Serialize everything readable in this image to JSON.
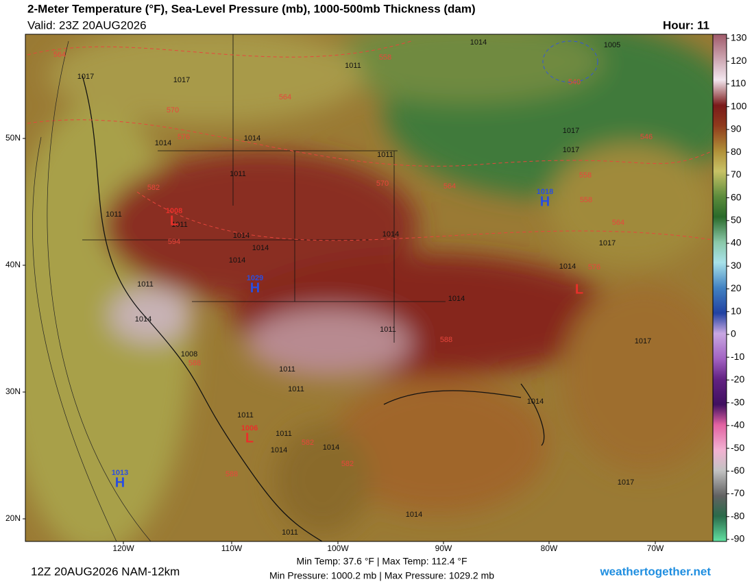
{
  "header": {
    "title": "2-Meter Temperature (°F), Sea-Level Pressure (mb), 1000-500mb Thickness (dam)",
    "valid": "Valid: 23Z 20AUG2026",
    "hour": "Hour: 11"
  },
  "colorbar": {
    "ticks": [
      130,
      120,
      110,
      100,
      90,
      80,
      70,
      60,
      50,
      40,
      30,
      20,
      10,
      0,
      -10,
      -20,
      -30,
      -40,
      -50,
      -60,
      -70,
      -80,
      -90
    ]
  },
  "latitudes": [
    "50N",
    "40N",
    "30N",
    "20N"
  ],
  "longitudes": [
    "120W",
    "110W",
    "100W",
    "90W",
    "80W",
    "70W"
  ],
  "isobars": [
    "1017",
    "1017",
    "1014",
    "1011",
    "1014",
    "1014",
    "1011",
    "1011",
    "1017",
    "1017",
    "1011",
    "1014",
    "1014",
    "1014",
    "1014",
    "1011",
    "1014",
    "1014",
    "1011",
    "1017",
    "1014",
    "1017",
    "1008",
    "1011",
    "1011",
    "1011",
    "1011",
    "1014",
    "1014",
    "1014",
    "1014",
    "1017",
    "1011",
    "1005",
    "1011"
  ],
  "thickness": [
    "564",
    "558",
    "564",
    "570",
    "576",
    "570",
    "564",
    "582",
    "558",
    "558",
    "564",
    "546",
    "576",
    "588",
    "588",
    "582",
    "582",
    "588",
    "594",
    "540"
  ],
  "centers": [
    {
      "letter": "H",
      "pressure": "1018"
    },
    {
      "letter": "H",
      "pressure": "1029"
    },
    {
      "letter": "H",
      "pressure": "1013"
    },
    {
      "letter": "L",
      "pressure": "1008"
    },
    {
      "letter": "L",
      "pressure": "1006"
    },
    {
      "letter": "L"
    }
  ],
  "footer": {
    "model": "12Z 20AUG2026 NAM-12km",
    "temps": "Min Temp:  37.6 °F | Max Temp: 112.4 °F",
    "pressures": "Min Pressure: 1000.2 mb | Max Pressure: 1029.2 mb",
    "site": "weathertogether.net"
  }
}
